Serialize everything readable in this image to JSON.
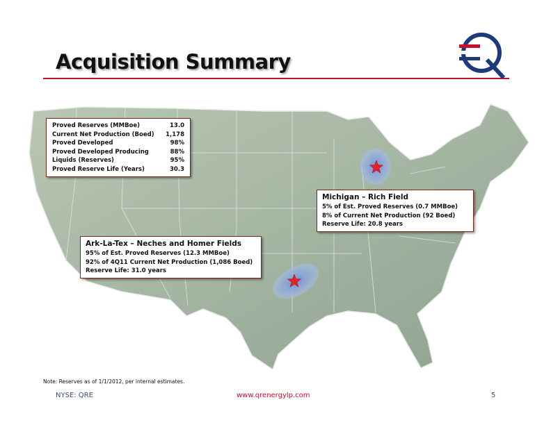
{
  "header": {
    "title": "Acquisition Summary"
  },
  "summary": {
    "rows": [
      [
        "Proved Reserves (MMBoe)",
        "13.0"
      ],
      [
        "Current Net Production (Boed)",
        "1,178"
      ],
      [
        "Proved Developed",
        "98%"
      ],
      [
        "Proved Developed Producing",
        "88%"
      ],
      [
        "Liquids (Reserves)",
        "95%"
      ],
      [
        "Proved Reserve Life (Years)",
        "30.3"
      ]
    ]
  },
  "callouts": [
    {
      "title": "Michigan – Rich Field",
      "lines": [
        "5% of Est. Proved Reserves (0.7 MMBoe)",
        "8% of Current Net Production (92 Boed)",
        "Reserve Life: 20.8 years"
      ]
    },
    {
      "title": "Ark-La-Tex – Neches and Homer Fields",
      "lines": [
        "95% of Est. Proved Reserves (12.3 MMBoe)",
        "92% of 4Q11 Current Net  Production (1,086 Boed)",
        "Reserve Life: 31.0 years"
      ]
    }
  ],
  "footer": {
    "note": "Note: Reserves as of 1/1/2012, per internal estimates.",
    "ticker": "NYSE: QRE",
    "url": "www.qrenergylp.com",
    "page": "5"
  }
}
